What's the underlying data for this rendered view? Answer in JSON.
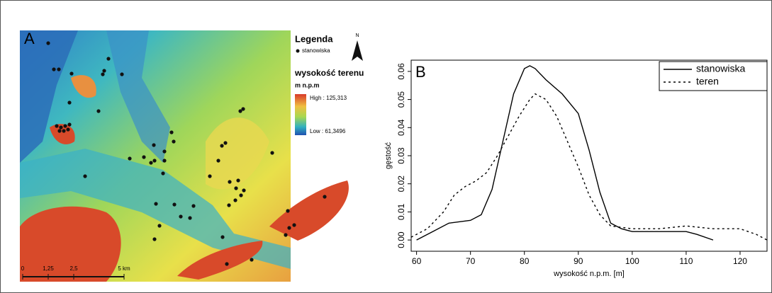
{
  "map": {
    "panel_label": "A",
    "legend_title": "Legenda",
    "point_label": "stanowiska",
    "north": "N",
    "elevation_title": "wysokość terenu",
    "unit": "m n.p.m",
    "high": "High : 125,313",
    "low": "Low : 61,3496",
    "scale_labels": [
      "0",
      "1,25",
      "2,5",
      "5 km"
    ]
  },
  "chart_data": {
    "type": "line",
    "panel_label": "B",
    "xlabel": "wysokość n.p.m. [m]",
    "ylabel": "gęstość",
    "xlim": [
      59,
      125
    ],
    "ylim": [
      -0.004,
      0.064
    ],
    "xticks": [
      60,
      70,
      80,
      90,
      100,
      110,
      120
    ],
    "yticks": [
      {
        "value": 0,
        "label": "0.00"
      },
      {
        "value": 0.01,
        "label": "0.01"
      },
      {
        "value": 0.02,
        "label": "0.02"
      },
      {
        "value": 0.03,
        "label": "0.03"
      },
      {
        "value": 0.04,
        "label": "0.04"
      },
      {
        "value": 0.05,
        "label": "0.05"
      },
      {
        "value": 0.06,
        "label": "0.06"
      }
    ],
    "legend": "upper right",
    "series": [
      {
        "name": "stanowiska",
        "color": "#000000",
        "dash": "solid",
        "x": [
          60,
          63,
          66,
          70,
          72,
          74,
          76,
          78,
          80,
          81,
          82,
          84,
          87,
          90,
          92,
          94,
          96,
          98,
          100,
          104,
          108,
          110,
          112,
          115
        ],
        "values": [
          0.0,
          0.003,
          0.006,
          0.007,
          0.009,
          0.018,
          0.035,
          0.052,
          0.061,
          0.062,
          0.061,
          0.057,
          0.052,
          0.045,
          0.032,
          0.017,
          0.006,
          0.004,
          0.003,
          0.003,
          0.003,
          0.003,
          0.002,
          0.0
        ]
      },
      {
        "name": "teren",
        "color": "#000000",
        "dash": "dotted",
        "x": [
          59,
          62,
          65,
          67,
          69,
          71,
          73,
          75,
          77,
          79,
          81,
          82,
          84,
          86,
          88,
          90,
          92,
          94,
          96,
          100,
          105,
          110,
          115,
          120,
          123,
          125
        ],
        "values": [
          0.001,
          0.004,
          0.01,
          0.016,
          0.019,
          0.021,
          0.024,
          0.03,
          0.037,
          0.044,
          0.05,
          0.052,
          0.05,
          0.044,
          0.035,
          0.026,
          0.016,
          0.009,
          0.005,
          0.004,
          0.004,
          0.005,
          0.004,
          0.004,
          0.002,
          0.0
        ]
      }
    ]
  }
}
